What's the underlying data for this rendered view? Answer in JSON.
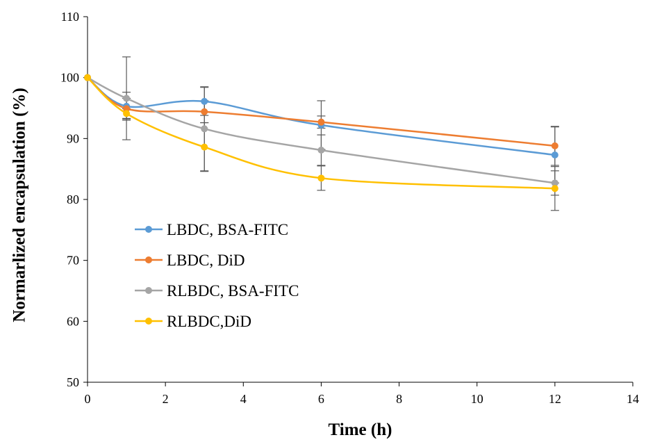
{
  "chart_data": {
    "type": "line",
    "xlabel": "Time (h)",
    "ylabel": "Normarlized encapsulation (%)",
    "xlim": [
      0,
      14
    ],
    "ylim": [
      50,
      110
    ],
    "xticks": [
      0,
      2,
      4,
      6,
      8,
      10,
      12,
      14
    ],
    "yticks": [
      50,
      60,
      70,
      80,
      90,
      100,
      110
    ],
    "grid": false,
    "legend_position": "left-center",
    "series": [
      {
        "name": "LBDC, BSA-FITC",
        "color": "#5b9bd5",
        "x": [
          0,
          1,
          3,
          6,
          12
        ],
        "y": [
          100,
          95.3,
          96.1,
          92.2,
          87.3
        ],
        "error": [
          0,
          2.3,
          2.3,
          4.0,
          4.6
        ]
      },
      {
        "name": "LBDC, DiD",
        "color": "#ed7d31",
        "x": [
          0,
          1,
          3,
          6,
          12
        ],
        "y": [
          100,
          94.9,
          94.4,
          92.7,
          88.8
        ],
        "error": [
          0,
          1.7,
          1.8,
          1.0,
          3.2
        ]
      },
      {
        "name": "RLBDC, BSA-FITC",
        "color": "#a5a5a5",
        "x": [
          0,
          1,
          3,
          6,
          12
        ],
        "y": [
          100,
          96.6,
          91.6,
          88.1,
          82.7
        ],
        "error": [
          0,
          6.8,
          6.9,
          2.5,
          2.0
        ]
      },
      {
        "name": "RLBDC,DiD",
        "color": "#ffc000",
        "x": [
          0,
          1,
          3,
          6,
          12
        ],
        "y": [
          100,
          94.1,
          88.6,
          83.5,
          81.8
        ],
        "error": [
          0,
          0.8,
          4.0,
          2.0,
          3.6
        ]
      }
    ]
  }
}
